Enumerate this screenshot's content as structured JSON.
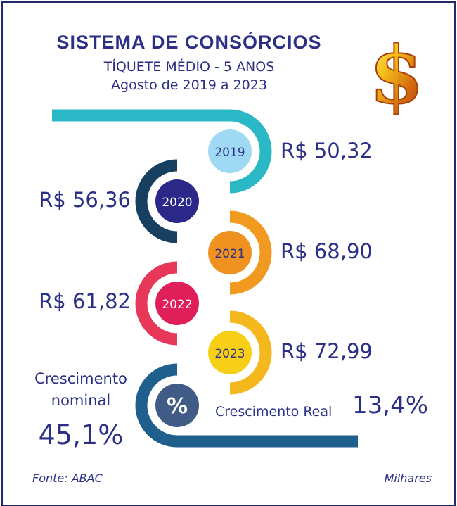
{
  "chart_data": {
    "type": "other",
    "title": "SISTEMA DE CONSÓRCIOS",
    "subtitle": "TÍQUETE MÉDIO - 5 ANOS",
    "period": "Agosto de 2019 a 2023",
    "categories": [
      "2019",
      "2020",
      "2021",
      "2022",
      "2023"
    ],
    "values": [
      50.32,
      56.36,
      68.9,
      61.82,
      72.99
    ],
    "value_labels": [
      "R$ 50,32",
      "R$ 56,36",
      "R$ 68,90",
      "R$ 61,82",
      "R$ 72,99"
    ],
    "colors": [
      "#2ab7c6",
      "#173f5f",
      "#f29a1f",
      "#e8385a",
      "#f5b81c"
    ],
    "circle_colors": [
      "#9fd9f4",
      "#2b2889",
      "#f0921f",
      "#e01f5a",
      "#f7cf14"
    ],
    "nominal_growth_label": [
      "Crescimento",
      "nominal"
    ],
    "nominal_growth_value": "45,1%",
    "real_growth_label": "Crescimento Real",
    "real_growth_value": "13,4%",
    "percent_symbol": "%",
    "source": "Fonte: ABAC",
    "units": "Milhares",
    "icon": "gold-dollar-sign-icon"
  }
}
